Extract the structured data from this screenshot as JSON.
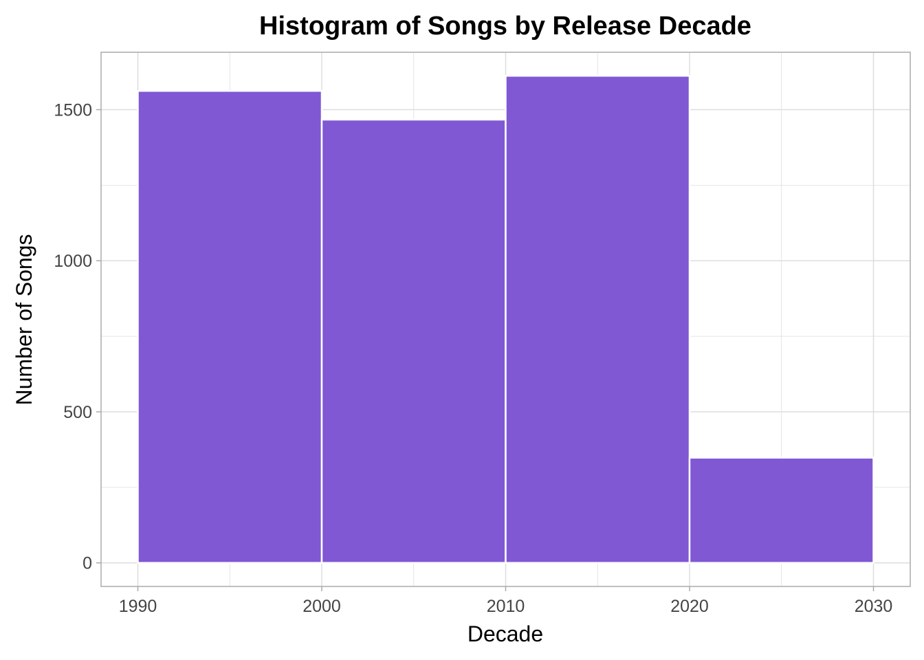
{
  "chart_data": {
    "type": "bar",
    "title": "Histogram of Songs by Release Decade",
    "xlabel": "Decade",
    "ylabel": "Number of Songs",
    "bins": [
      {
        "start": 1990,
        "end": 2000,
        "value": 1562
      },
      {
        "start": 2000,
        "end": 2010,
        "value": 1467
      },
      {
        "start": 2010,
        "end": 2020,
        "value": 1612
      },
      {
        "start": 2020,
        "end": 2030,
        "value": 348
      }
    ],
    "x_ticks": [
      "1990",
      "2000",
      "2010",
      "2020",
      "2030"
    ],
    "y_ticks": [
      "0",
      "500",
      "1000",
      "1500"
    ],
    "xlim": [
      1988,
      2032
    ],
    "ylim": [
      -78,
      1690
    ],
    "grid": true,
    "colors": {
      "bar_fill": "#8058D4",
      "bar_edge": "#FFFFFF",
      "grid": "#DDDDDD",
      "panel_border": "#AAAAAA",
      "tick_text": "#444444"
    }
  }
}
